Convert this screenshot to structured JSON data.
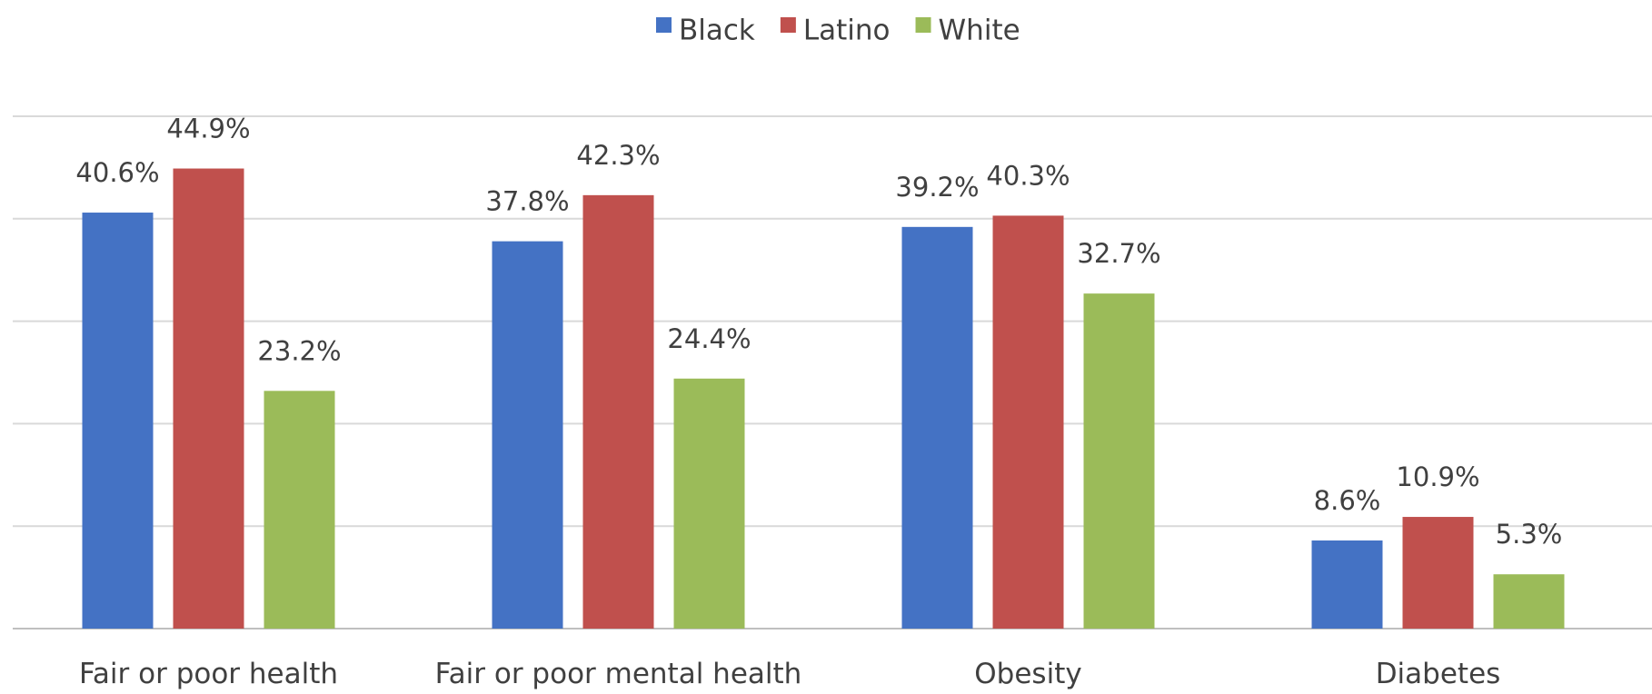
{
  "chart_data": {
    "type": "bar",
    "categories": [
      "Fair or poor health",
      "Fair or poor mental health",
      "Obesity",
      "Diabetes"
    ],
    "series": [
      {
        "name": "Black",
        "color": "#4472C4",
        "values": [
          40.6,
          37.8,
          39.2,
          8.6
        ],
        "labels": [
          "40.6%",
          "37.8%",
          "39.2%",
          "8.6%"
        ]
      },
      {
        "name": "Latino",
        "color": "#C0504D",
        "values": [
          44.9,
          42.3,
          40.3,
          10.9
        ],
        "labels": [
          "44.9%",
          "42.3%",
          "40.3%",
          "10.9%"
        ]
      },
      {
        "name": "White",
        "color": "#9BBB59",
        "values": [
          23.2,
          24.4,
          32.7,
          5.3
        ],
        "labels": [
          "23.2%",
          "24.4%",
          "32.7%",
          "5.3%"
        ]
      }
    ],
    "title": "",
    "xlabel": "",
    "ylabel": "",
    "ylim": [
      0,
      50
    ],
    "grid": true,
    "legend": "top-center"
  }
}
